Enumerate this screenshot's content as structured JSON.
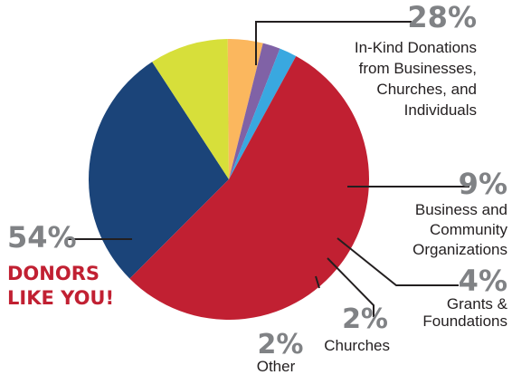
{
  "chart_data": {
    "type": "pie",
    "title": "",
    "slices": [
      {
        "key": "inkind",
        "label_lines": [
          "In-Kind Donations",
          "from Businesses,",
          "Churches, and",
          "Individuals"
        ],
        "percent_label": "28%",
        "value": 28,
        "color": "#1b4479"
      },
      {
        "key": "business",
        "label_lines": [
          "Business and",
          "Community",
          "Organizations"
        ],
        "percent_label": "9%",
        "value": 9,
        "color": "#d7df3a"
      },
      {
        "key": "grants",
        "label_lines": [
          "Grants &",
          "Foundations"
        ],
        "percent_label": "4%",
        "value": 4,
        "color": "#fbb75e"
      },
      {
        "key": "churches",
        "label_lines": [
          "Churches"
        ],
        "percent_label": "2%",
        "value": 2,
        "color": "#8062a6"
      },
      {
        "key": "other",
        "label_lines": [
          "Other"
        ],
        "percent_label": "2%",
        "value": 2,
        "color": "#39a8e0"
      },
      {
        "key": "donors",
        "label_lines": [
          "DONORS",
          "LIKE YOU!"
        ],
        "percent_label": "54%",
        "value": 54,
        "color": "#c12032"
      }
    ],
    "accent_color": "#c12032"
  }
}
